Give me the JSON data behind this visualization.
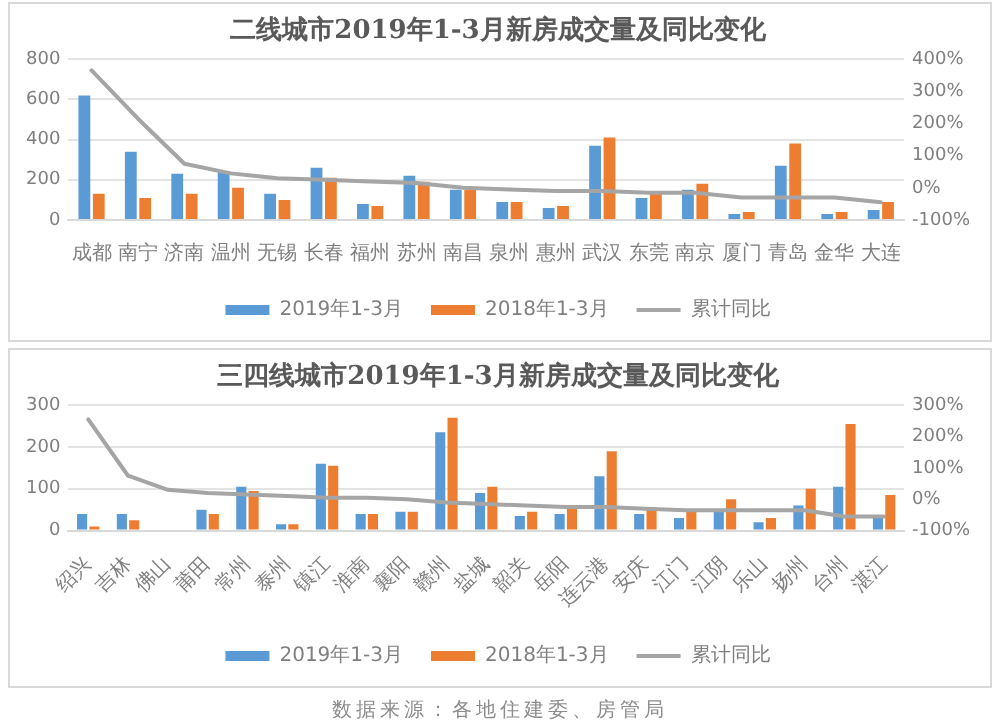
{
  "chart_data": [
    {
      "type": "bar",
      "title": "二线城市2019年1-3月新房成交量及同比变化",
      "categories": [
        "成都",
        "南宁",
        "济南",
        "温州",
        "无锡",
        "长春",
        "福州",
        "苏州",
        "南昌",
        "泉州",
        "惠州",
        "武汉",
        "东莞",
        "南京",
        "厦门",
        "青岛",
        "金华",
        "大连"
      ],
      "series": [
        {
          "name": "2019年1-3月",
          "color": "#5b9bd5",
          "values": [
            620,
            340,
            230,
            240,
            130,
            260,
            80,
            220,
            150,
            90,
            60,
            370,
            110,
            150,
            30,
            270,
            30,
            50
          ]
        },
        {
          "name": "2018年1-3月",
          "color": "#ed7d31",
          "values": [
            130,
            110,
            130,
            160,
            100,
            210,
            70,
            190,
            150,
            90,
            70,
            410,
            130,
            180,
            40,
            380,
            40,
            90
          ]
        },
        {
          "name": "累计同比",
          "type": "line",
          "axis": "y2",
          "color": "#a5a5a5",
          "marker": "none",
          "values": [
            365,
            215,
            75,
            45,
            30,
            25,
            20,
            15,
            0,
            -5,
            -10,
            -10,
            -15,
            -15,
            -30,
            -30,
            -30,
            -45
          ]
        }
      ],
      "ylim": [
        0,
        800
      ],
      "yticks": [
        0,
        200,
        400,
        600,
        800
      ],
      "y2lim": [
        -100,
        400
      ],
      "y2ticks": [
        {
          "value": -100,
          "label": "-100%"
        },
        {
          "value": 0,
          "label": "0%"
        },
        {
          "value": 100,
          "label": "100%"
        },
        {
          "value": 200,
          "label": "200%"
        },
        {
          "value": 300,
          "label": "300%"
        },
        {
          "value": 400,
          "label": "400%"
        }
      ],
      "grid": "y",
      "legend": "bottom"
    },
    {
      "type": "bar",
      "title": "三四线城市2019年1-3月新房成交量及同比变化",
      "categories": [
        "绍兴",
        "吉林",
        "佛山",
        "莆田",
        "常州",
        "泰州",
        "镇江",
        "淮南",
        "襄阳",
        "赣州",
        "盐城",
        "韶关",
        "岳阳",
        "连云港",
        "安庆",
        "江门",
        "江阴",
        "乐山",
        "扬州",
        "台州",
        "湛江"
      ],
      "series": [
        {
          "name": "2019年1-3月",
          "color": "#5b9bd5",
          "values": [
            40,
            40,
            null,
            50,
            105,
            15,
            160,
            40,
            45,
            235,
            90,
            35,
            40,
            130,
            40,
            30,
            45,
            20,
            60,
            105,
            30
          ]
        },
        {
          "name": "2018年1-3月",
          "color": "#ed7d31",
          "values": [
            10,
            25,
            null,
            40,
            95,
            15,
            155,
            40,
            45,
            270,
            105,
            45,
            60,
            190,
            55,
            45,
            75,
            30,
            100,
            255,
            85
          ]
        },
        {
          "name": "累计同比",
          "type": "line",
          "axis": "y2",
          "color": "#a5a5a5",
          "marker": "none",
          "values": [
            255,
            75,
            30,
            20,
            15,
            10,
            5,
            5,
            0,
            -10,
            -15,
            -20,
            -25,
            -25,
            -30,
            -35,
            -35,
            -35,
            -35,
            -55,
            -55
          ]
        }
      ],
      "ylim": [
        0,
        300
      ],
      "yticks": [
        0,
        100,
        200,
        300
      ],
      "y2lim": [
        -100,
        300
      ],
      "y2ticks": [
        {
          "value": -100,
          "label": "-100%"
        },
        {
          "value": 0,
          "label": "0%"
        },
        {
          "value": 100,
          "label": "100%"
        },
        {
          "value": 200,
          "label": "200%"
        },
        {
          "value": 300,
          "label": "300%"
        }
      ],
      "grid": "y",
      "legend": "bottom",
      "annotations": [
        "数据来源：各地住建委、房管局"
      ]
    }
  ]
}
